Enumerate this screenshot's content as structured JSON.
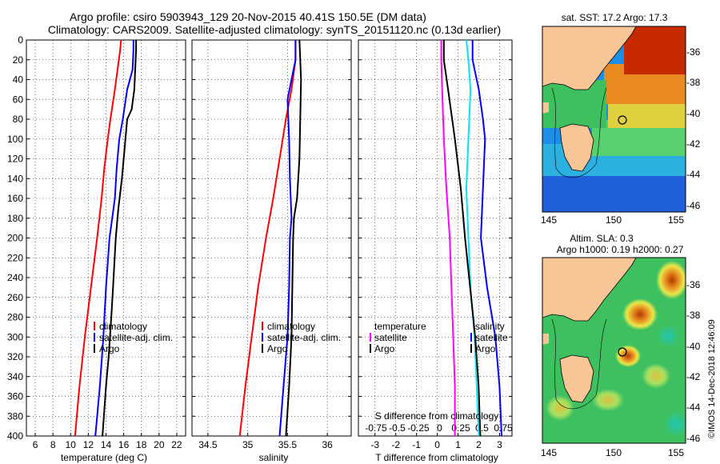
{
  "title": {
    "line1": "Argo profile: csiro 5903943_129 20-Nov-2015 40.41S 150.5E (DM data)",
    "line2": "Climatology: CARS2009. Satellite-adjusted climatology: synTS_20151120.nc (0.13d earlier)"
  },
  "watermark": "©IMOS 14-Dec-2018 12:46:09",
  "colors": {
    "climatology": "#ff0000",
    "satellite": "#0000ff",
    "argo": "#000000",
    "t_diff": "#00e5ff",
    "s_diff": "#ff00ff"
  },
  "chart_data": [
    {
      "type": "line",
      "id": "temperature",
      "xlabel": "temperature (deg C)",
      "ylabel": "",
      "xlim": [
        5,
        23
      ],
      "ylim": [
        400,
        0
      ],
      "xticks": [
        "6",
        "8",
        "10",
        "12",
        "14",
        "16",
        "18",
        "20",
        "22"
      ],
      "yticks": [
        "0",
        "20",
        "40",
        "60",
        "80",
        "100",
        "120",
        "140",
        "160",
        "180",
        "200",
        "220",
        "240",
        "260",
        "280",
        "300",
        "320",
        "340",
        "360",
        "380",
        "400"
      ],
      "legend": [
        "climatology",
        "satellite-adj. clim.",
        "Argo"
      ],
      "series": [
        {
          "name": "climatology",
          "depth": [
            0,
            10,
            30,
            50,
            80,
            100,
            130,
            160,
            200,
            250,
            300,
            350,
            400
          ],
          "values": [
            15.7,
            15.6,
            15.3,
            15.0,
            14.5,
            14.2,
            13.8,
            13.5,
            13.0,
            12.3,
            11.6,
            11.0,
            10.5
          ]
        },
        {
          "name": "satellite-adj. clim.",
          "depth": [
            0,
            10,
            30,
            50,
            80,
            100,
            130,
            160,
            200,
            250,
            300,
            350,
            400
          ],
          "values": [
            17.1,
            17.1,
            17.0,
            16.4,
            15.9,
            15.5,
            15.2,
            15.0,
            14.4,
            14.0,
            13.7,
            13.3,
            12.8
          ]
        },
        {
          "name": "Argo",
          "depth": [
            0,
            10,
            30,
            50,
            70,
            80,
            100,
            140,
            170,
            200,
            250,
            280,
            320,
            350,
            400
          ],
          "values": [
            17.4,
            17.4,
            17.3,
            17.2,
            16.9,
            16.4,
            16.2,
            15.8,
            15.4,
            15.1,
            14.8,
            14.6,
            14.3,
            14.0,
            13.6
          ]
        }
      ]
    },
    {
      "type": "line",
      "id": "salinity",
      "xlabel": "salinity",
      "ylabel": "",
      "xlim": [
        34.3,
        36.3
      ],
      "ylim": [
        400,
        0
      ],
      "xticks": [
        "34.5",
        "35",
        "35.5",
        "36"
      ],
      "legend": [
        "climatology",
        "satellite-adj. clim.",
        "Argo"
      ],
      "series": [
        {
          "name": "climatology",
          "depth": [
            0,
            20,
            50,
            80,
            120,
            160,
            200,
            250,
            300,
            350,
            400
          ],
          "values": [
            35.6,
            35.6,
            35.55,
            35.48,
            35.4,
            35.32,
            35.23,
            35.13,
            35.05,
            34.97,
            34.9
          ]
        },
        {
          "name": "satellite-adj. clim.",
          "depth": [
            0,
            20,
            40,
            60,
            100,
            140,
            180,
            200,
            250,
            300,
            350,
            400
          ],
          "values": [
            35.6,
            35.6,
            35.55,
            35.5,
            35.52,
            35.53,
            35.55,
            35.53,
            35.52,
            35.5,
            35.45,
            35.4
          ]
        },
        {
          "name": "Argo",
          "depth": [
            0,
            20,
            40,
            80,
            120,
            160,
            180,
            200,
            250,
            300,
            350,
            400
          ],
          "values": [
            35.65,
            35.66,
            35.67,
            35.66,
            35.65,
            35.62,
            35.58,
            35.57,
            35.56,
            35.55,
            35.52,
            35.48
          ]
        }
      ]
    },
    {
      "type": "line",
      "id": "differences",
      "xlabel": "T difference from climatology",
      "x2label": "S difference from climatology",
      "xlim": [
        -3.8,
        3.6
      ],
      "ylim": [
        400,
        0
      ],
      "xticks": [
        "-3",
        "-2",
        "-1",
        "0",
        "1",
        "2",
        "3"
      ],
      "x2ticks": [
        "-0.75",
        "-0.5",
        "-0.25",
        "0",
        "0.25",
        "0.5",
        "0.75"
      ],
      "legend_left": [
        "temperature",
        "satellite",
        "Argo"
      ],
      "legend_right": [
        "salinity",
        "satellite",
        "Argo"
      ],
      "series": [
        {
          "name": "T satellite",
          "depth": [
            0,
            20,
            50,
            100,
            150,
            200,
            250,
            300,
            350,
            400
          ],
          "values": [
            1.4,
            1.5,
            1.6,
            1.5,
            1.4,
            1.5,
            1.6,
            1.8,
            1.9,
            2.0
          ]
        },
        {
          "name": "T Argo",
          "depth": [
            0,
            20,
            50,
            80,
            100,
            150,
            200,
            250,
            300,
            350,
            400
          ],
          "values": [
            1.7,
            1.7,
            2.0,
            2.2,
            2.3,
            2.2,
            2.1,
            2.4,
            2.8,
            3.0,
            3.1
          ]
        },
        {
          "name": "S satellite",
          "depth": [
            0,
            20,
            50,
            100,
            150,
            200,
            250,
            300,
            350,
            400
          ],
          "values": [
            0.02,
            0.02,
            0.03,
            0.05,
            0.08,
            0.12,
            0.14,
            0.16,
            0.18,
            0.18
          ]
        },
        {
          "name": "S Argo",
          "depth": [
            0,
            20,
            50,
            100,
            150,
            200,
            250,
            300,
            350,
            400
          ],
          "values": [
            0.05,
            0.05,
            0.1,
            0.18,
            0.25,
            0.3,
            0.36,
            0.42,
            0.46,
            0.48
          ]
        }
      ]
    },
    {
      "type": "heatmap",
      "id": "sst_map",
      "title": "sat. SST: 17.2 Argo: 17.3",
      "xticks": [
        "145",
        "150",
        "155"
      ],
      "yticks": [
        "-36",
        "-38",
        "-40",
        "-42",
        "-44",
        "-46"
      ],
      "argo_position": {
        "lon": 150.5,
        "lat": -40.4
      }
    },
    {
      "type": "heatmap",
      "id": "sla_map",
      "title": "Altim. SLA: 0.3",
      "subtitle": "Argo h1000: 0.19 h2000: 0.27",
      "xticks": [
        "145",
        "150",
        "155"
      ],
      "yticks": [
        "-36",
        "-38",
        "-40",
        "-42",
        "-44",
        "-46"
      ],
      "argo_position": {
        "lon": 150.5,
        "lat": -40.4
      }
    }
  ]
}
